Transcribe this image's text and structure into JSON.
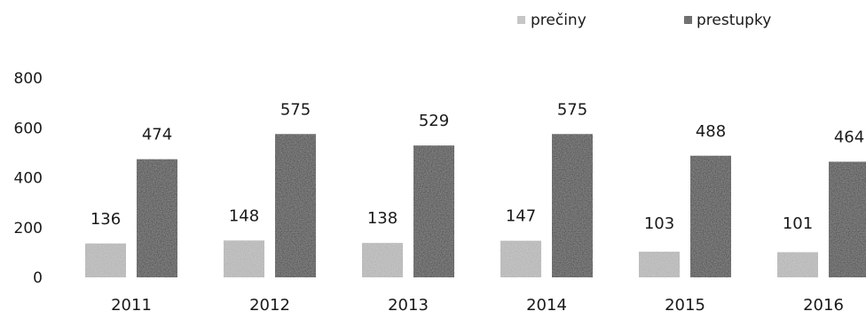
{
  "chart_data": {
    "type": "bar",
    "categories": [
      "2011",
      "2012",
      "2013",
      "2014",
      "2015",
      "2016"
    ],
    "series": [
      {
        "name": "prečiny",
        "values": [
          136,
          148,
          138,
          147,
          103,
          101
        ],
        "color": "#cfcfcf"
      },
      {
        "name": "prestupky",
        "values": [
          474,
          575,
          529,
          575,
          488,
          464
        ],
        "color": "#3c3c3c"
      }
    ],
    "ylim": [
      0,
      800
    ],
    "yticks": [
      0,
      200,
      400,
      600,
      800
    ],
    "grid": false,
    "legend_position": "top-right"
  }
}
